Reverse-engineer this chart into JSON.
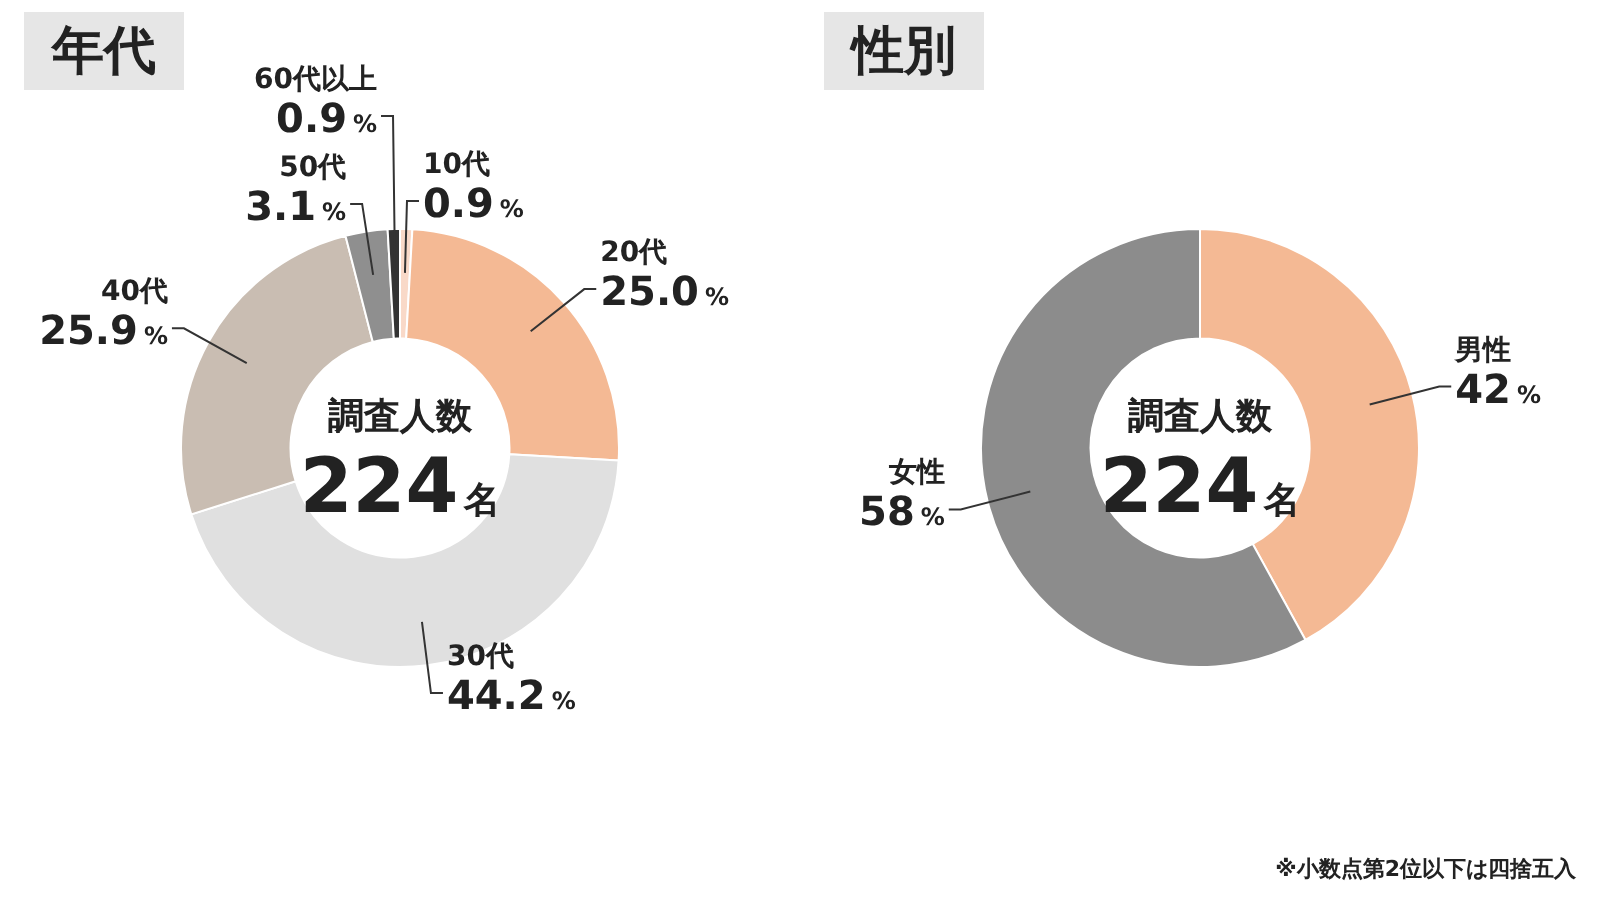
{
  "chart_data": [
    {
      "type": "donut",
      "title": "年代",
      "categories": [
        "10代",
        "20代",
        "30代",
        "40代",
        "50代",
        "60代以上"
      ],
      "values": [
        0.9,
        25.0,
        44.2,
        25.9,
        3.1,
        0.9
      ],
      "colors": [
        "#f9d9c8",
        "#f4b994",
        "#e0e0e0",
        "#c9bdb2",
        "#8f8f8f",
        "#333333"
      ],
      "value_labels": [
        "0.9%",
        "25.0%",
        "44.2%",
        "25.9%",
        "3.1%",
        "0.9%"
      ],
      "annotations": [
        "調査人数",
        "224名"
      ]
    },
    {
      "type": "donut",
      "title": "性別",
      "categories": [
        "男性",
        "女性"
      ],
      "values": [
        42,
        58
      ],
      "colors": [
        "#f4b994",
        "#8c8c8c"
      ],
      "value_labels": [
        "42%",
        "58%"
      ],
      "annotations": [
        "調査人数",
        "224名",
        "※小数点第2位以下は四捨五入"
      ]
    }
  ]
}
